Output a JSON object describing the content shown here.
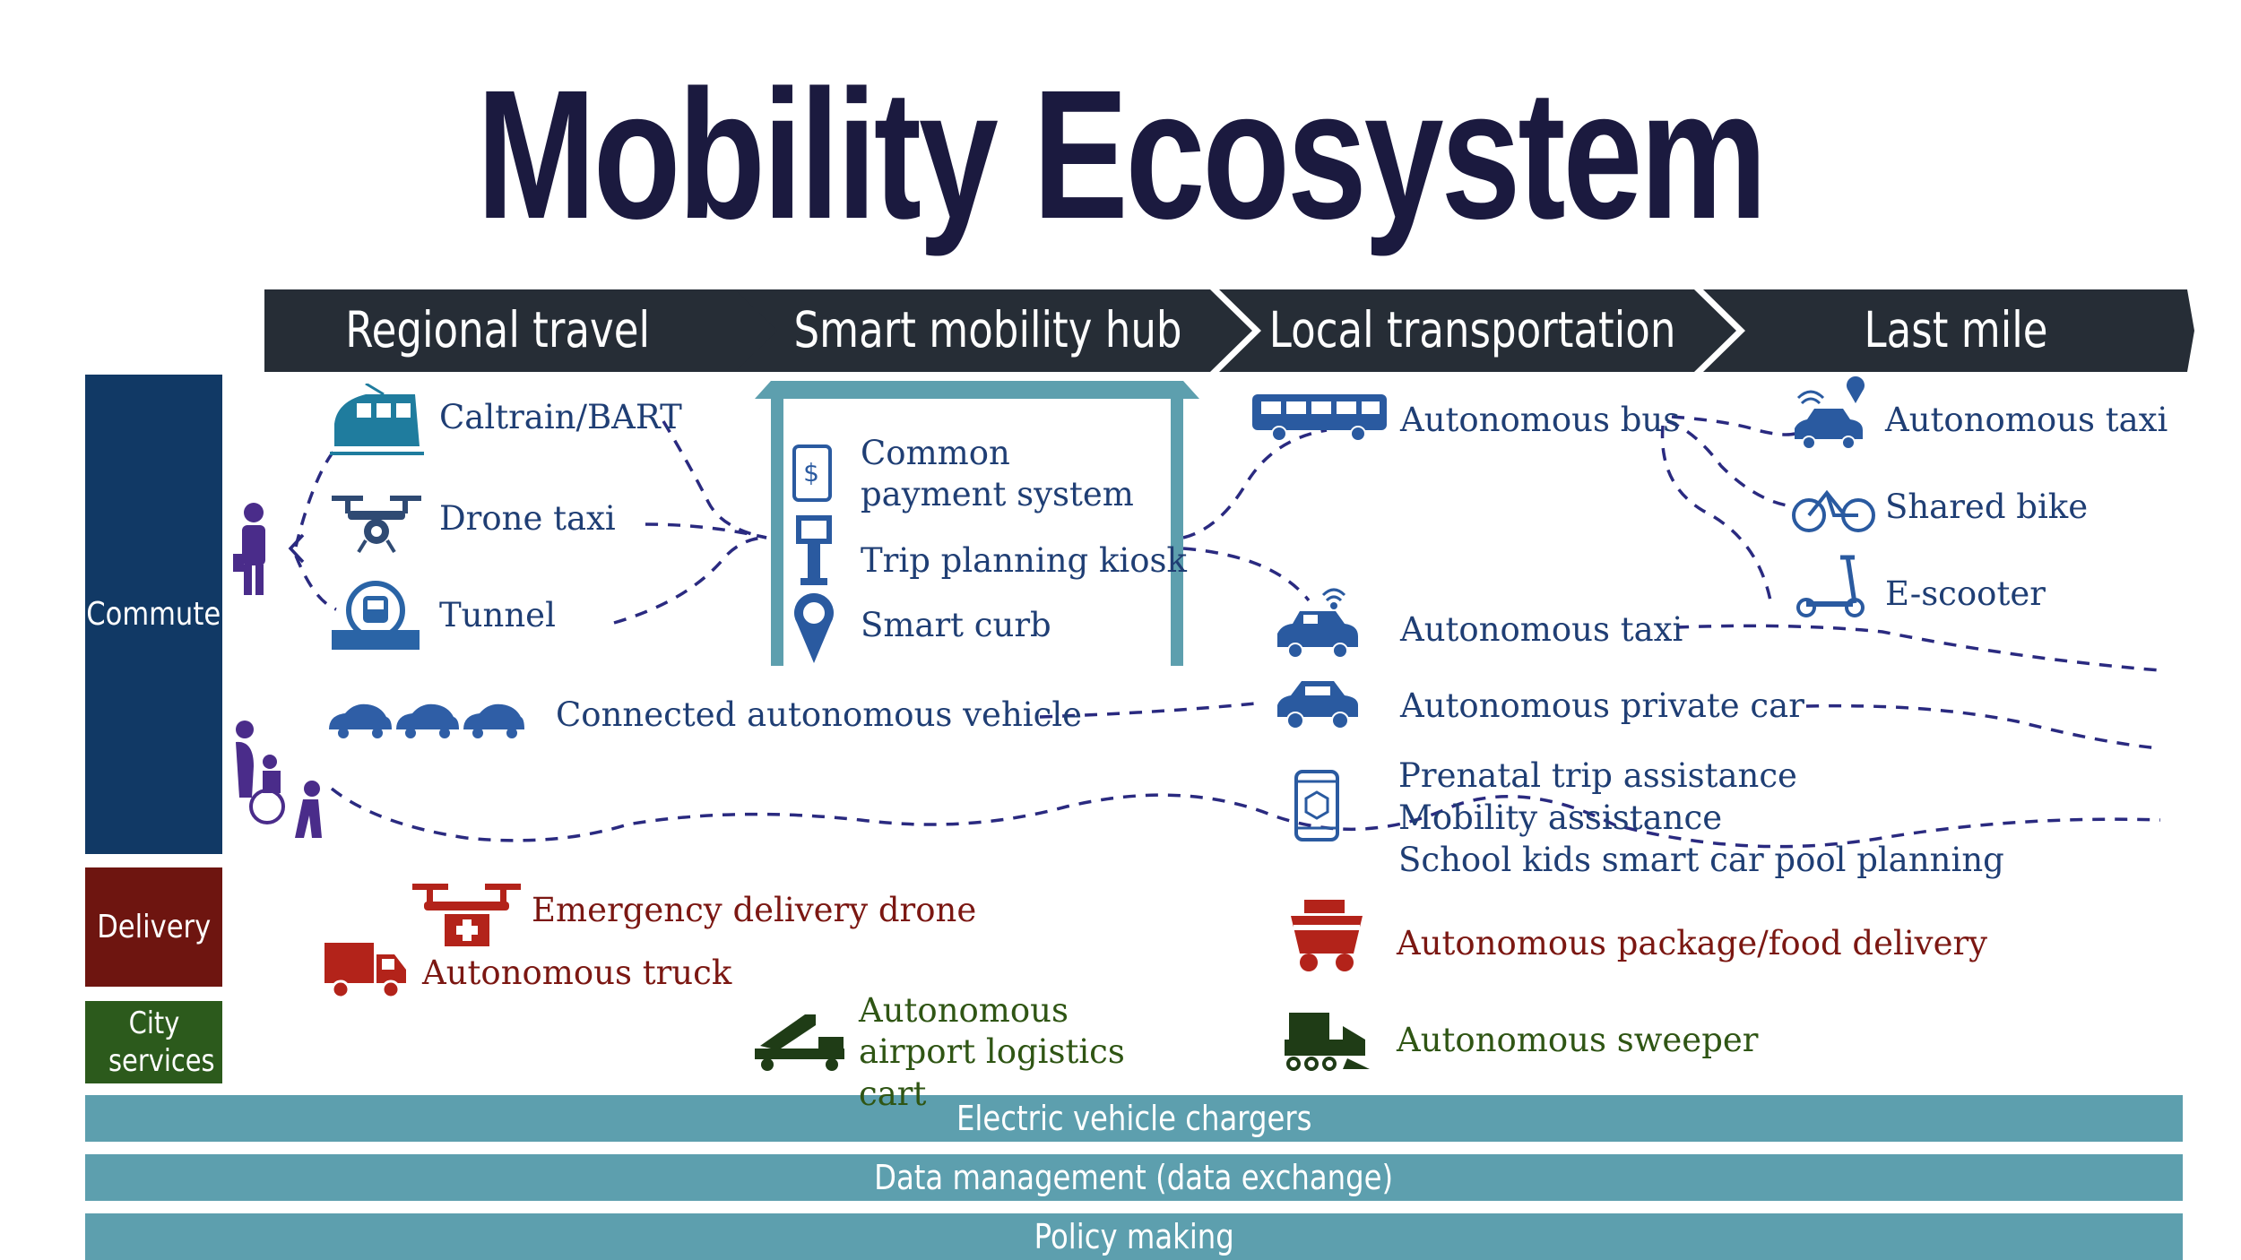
{
  "title": "Mobility Ecosystem",
  "phases": [
    "Regional travel",
    "Smart mobility hub",
    "Local transportation",
    "Last mile"
  ],
  "categories": {
    "commute": "Commute",
    "delivery": "Delivery",
    "city_services": "City services"
  },
  "regional": {
    "caltrain": "Caltrain/BART",
    "drone_taxi": "Drone taxi",
    "tunnel": "Tunnel"
  },
  "hub": {
    "payment": "Common payment system",
    "kiosk": "Trip planning kiosk",
    "curb": "Smart curb"
  },
  "local": {
    "bus": "Autonomous bus",
    "taxi": "Autonomous taxi",
    "private_car": "Autonomous private car",
    "prenatal": "Prenatal trip assistance",
    "mobility": "Mobility assistance",
    "school": "School kids smart car pool planning",
    "package": "Autonomous package/food delivery",
    "sweeper": "Autonomous sweeper"
  },
  "last_mile": {
    "taxi": "Autonomous taxi",
    "bike": "Shared bike",
    "scooter": "E-scooter"
  },
  "connected": "Connected autonomous vehicle",
  "delivery": {
    "drone": "Emergency delivery drone",
    "truck": "Autonomous truck"
  },
  "city": {
    "airport_cart": "Autonomous airport logistics cart"
  },
  "bands": [
    "Electric  vehicle chargers",
    "Data management (data exchange)",
    "Policy making"
  ],
  "colors": {
    "phase_bg": "#262d36",
    "commute": "#113965",
    "delivery": "#6e1510",
    "city": "#2c5a1c",
    "band": "#5d9fae",
    "navy_text": "#1f3e74",
    "red_text": "#7b1712",
    "green_text": "#2f5514",
    "dash": "#2a2a80"
  }
}
